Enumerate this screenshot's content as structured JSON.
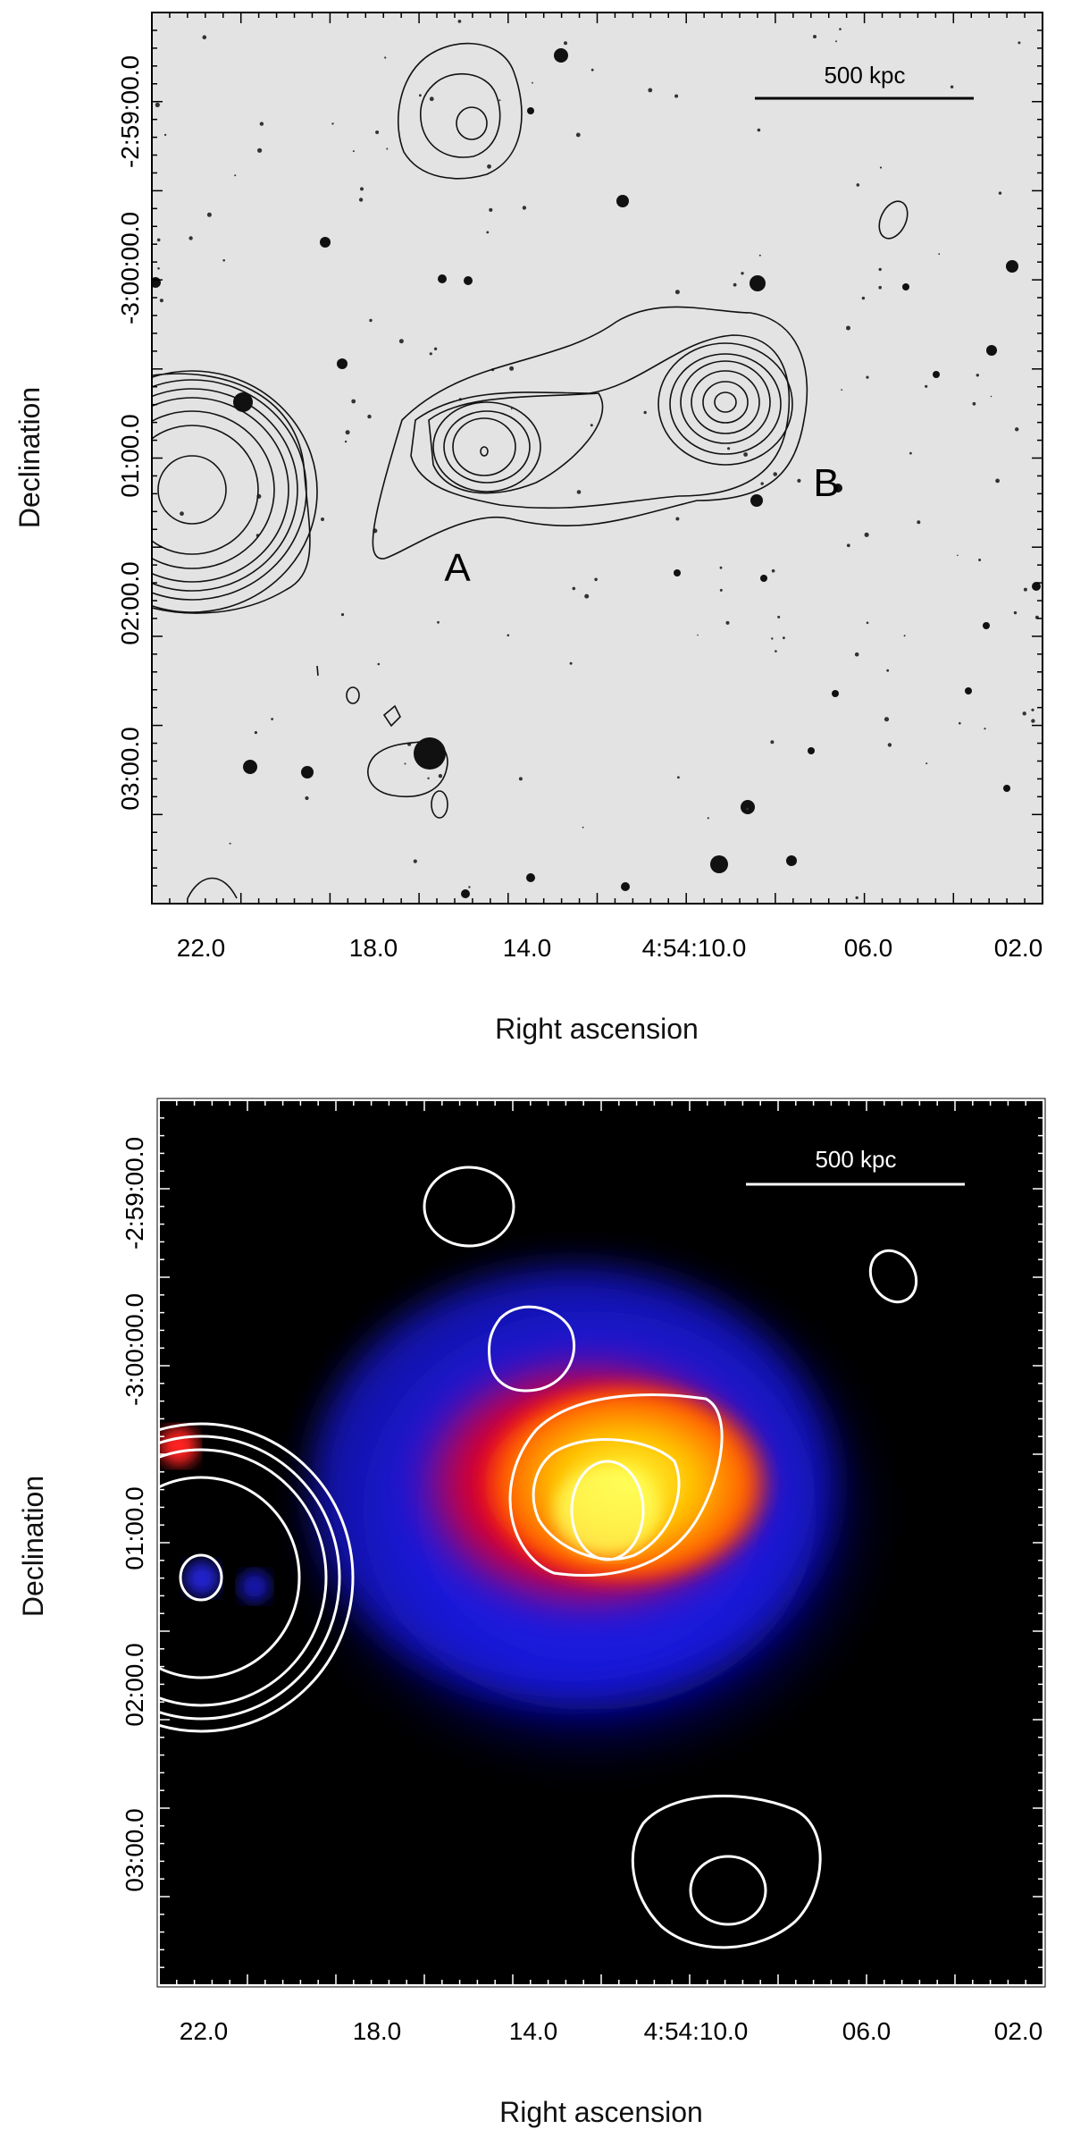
{
  "figure": {
    "panels": [
      {
        "id": "optical",
        "xlabel": "Right ascension",
        "ylabel": "Declination",
        "x_ticks": [
          "22.0",
          "18.0",
          "14.0",
          "4:54:10.0",
          "06.0",
          "02.0"
        ],
        "y_ticks": [
          "-2:59:00.0",
          "-3:00:00.0",
          "01:00.0",
          "02:00.0",
          "03:00.0"
        ],
        "scalebar_label": "500 kpc",
        "source_labels": [
          "A",
          "B"
        ],
        "background": "#e3e3e3",
        "contour_color": "#111111"
      },
      {
        "id": "xray",
        "xlabel": "Right ascension",
        "ylabel": "Declination",
        "x_ticks": [
          "22.0",
          "18.0",
          "14.0",
          "4:54:10.0",
          "06.0",
          "02.0"
        ],
        "y_ticks": [
          "-2:59:00.0",
          "-3:00:00.0",
          "01:00.0",
          "02:00.0",
          "03:00.0"
        ],
        "scalebar_label": "500 kpc",
        "background": "#000000",
        "contour_color": "#ffffff",
        "colormap": [
          "#0000a0",
          "#2020ff",
          "#ff0000",
          "#ff8000",
          "#ffff00"
        ]
      }
    ]
  },
  "chart_data": [
    {
      "type": "heatmap",
      "title": "",
      "xlabel": "Right ascension",
      "ylabel": "Declination",
      "x_tick_labels": [
        "22.0",
        "18.0",
        "14.0",
        "4:54:10.0",
        "06.0",
        "02.0"
      ],
      "y_tick_labels": [
        "-2:59:00.0",
        "-3:00:00.0",
        "01:00.0",
        "02:00.0",
        "03:00.0"
      ],
      "annotations": [
        "500 kpc",
        "A",
        "B"
      ],
      "image": "optical grayscale with radio contours"
    },
    {
      "type": "heatmap",
      "title": "",
      "xlabel": "Right ascension",
      "ylabel": "Declination",
      "x_tick_labels": [
        "22.0",
        "18.0",
        "14.0",
        "4:54:10.0",
        "06.0",
        "02.0"
      ],
      "y_tick_labels": [
        "-2:59:00.0",
        "-3:00:00.0",
        "01:00.0",
        "02:00.0",
        "03:00.0"
      ],
      "annotations": [
        "500 kpc"
      ],
      "image": "X-ray emission colormap with radio contours"
    }
  ]
}
